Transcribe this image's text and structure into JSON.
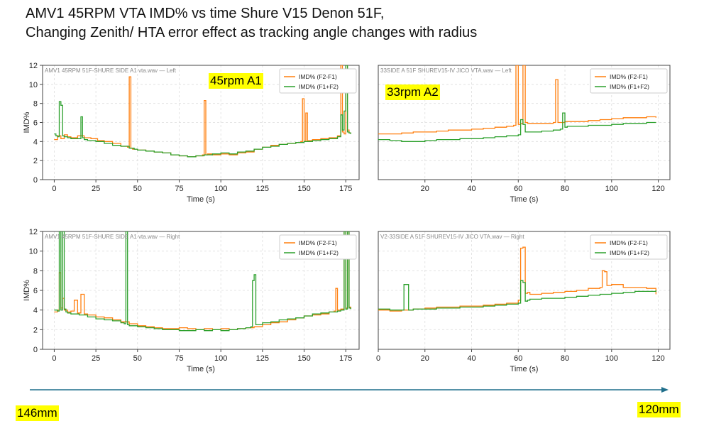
{
  "title_line1": "AMV1 45RPM   VTA IMD% vs time Shure V15 Denon 51F,",
  "title_line2": "Changing Zenith/ HTA error effect as  tracking angle changes with radius",
  "annotations": {
    "rpm45": "45rpm A1",
    "rpm33": "33rpm A2",
    "radius_start": "146mm",
    "radius_end": "120mm"
  },
  "colors": {
    "series1": "#ff7f0e",
    "series2": "#2ca02c",
    "highlight": "#ffff00",
    "arrow": "#1f6f8b"
  },
  "chart_data": [
    {
      "type": "line",
      "title": "AMV1 45RPM 51F-SHURE SIDE A1 vta.wav — Left",
      "xlabel": "Time (s)",
      "ylabel": "IMD%",
      "xlim": [
        -7,
        183
      ],
      "ylim": [
        0,
        12
      ],
      "xticks": [
        0,
        25,
        50,
        75,
        100,
        125,
        150,
        175
      ],
      "yticks": [
        0,
        2,
        4,
        6,
        8,
        10,
        12
      ],
      "grid": true,
      "legend": "top-right",
      "series": [
        {
          "name": "IMD% (F2-F1)",
          "x": [
            0,
            2,
            4,
            6,
            8,
            10,
            14,
            18,
            22,
            26,
            30,
            35,
            40,
            44,
            45,
            46,
            47,
            50,
            55,
            60,
            65,
            70,
            75,
            80,
            85,
            89,
            90,
            91,
            92,
            95,
            100,
            105,
            110,
            115,
            120,
            125,
            130,
            135,
            140,
            145,
            148,
            149,
            150,
            151,
            152,
            155,
            160,
            165,
            170,
            172,
            173,
            174,
            175,
            176,
            177,
            178
          ],
          "y": [
            4.2,
            4.6,
            4.3,
            4.7,
            4.5,
            4.4,
            4.6,
            4.4,
            4.3,
            4.1,
            4.0,
            3.8,
            3.5,
            3.4,
            10.8,
            3.3,
            3.2,
            3.1,
            3.0,
            2.9,
            2.8,
            2.6,
            2.5,
            2.4,
            2.5,
            2.6,
            8.3,
            2.6,
            2.7,
            2.6,
            2.7,
            2.6,
            2.8,
            2.9,
            3.2,
            3.4,
            3.6,
            3.7,
            3.8,
            3.9,
            4.0,
            8.5,
            4.0,
            7.0,
            4.1,
            4.2,
            4.3,
            4.4,
            4.6,
            12.0,
            5.0,
            4.8,
            12.0,
            5.2,
            4.9,
            4.8
          ]
        },
        {
          "name": "IMD% (F1+F2)",
          "x": [
            0,
            1,
            2,
            3,
            4,
            5,
            6,
            8,
            10,
            14,
            16,
            17,
            18,
            20,
            25,
            30,
            35,
            40,
            45,
            48,
            50,
            55,
            60,
            65,
            70,
            75,
            80,
            85,
            90,
            95,
            100,
            105,
            110,
            115,
            120,
            125,
            130,
            135,
            140,
            145,
            150,
            155,
            160,
            165,
            170,
            172,
            173,
            174,
            175,
            176,
            177,
            178
          ],
          "y": [
            4.8,
            4.6,
            4.5,
            8.2,
            7.8,
            4.6,
            4.5,
            4.4,
            4.3,
            4.3,
            6.6,
            4.4,
            4.2,
            4.1,
            4.0,
            3.8,
            3.6,
            3.5,
            3.3,
            3.2,
            3.1,
            3.0,
            2.9,
            2.8,
            2.6,
            2.5,
            2.4,
            2.5,
            2.6,
            2.7,
            2.8,
            2.7,
            2.9,
            3.0,
            3.2,
            3.4,
            3.5,
            3.7,
            3.8,
            3.9,
            4.0,
            4.1,
            4.2,
            4.3,
            4.5,
            6.8,
            5.2,
            7.2,
            12.0,
            5.0,
            4.9,
            4.8
          ]
        }
      ]
    },
    {
      "type": "line",
      "title": "33SIDE A 51F SHUREV15-IV JICO VTA.wav — Left",
      "xlabel": "Time (s)",
      "ylabel": "",
      "xlim": [
        0,
        125
      ],
      "ylim": [
        0,
        12
      ],
      "xticks": [
        20,
        40,
        60,
        80,
        100,
        120
      ],
      "yticks": [],
      "grid": true,
      "legend": "top-right",
      "series": [
        {
          "name": "IMD% (F2-F1)",
          "x": [
            0,
            5,
            10,
            15,
            20,
            25,
            30,
            35,
            40,
            45,
            50,
            55,
            58,
            59,
            60,
            61,
            62,
            63,
            64,
            65,
            70,
            75,
            76,
            77,
            78,
            80,
            85,
            90,
            95,
            100,
            105,
            110,
            115,
            119
          ],
          "y": [
            4.8,
            4.8,
            4.9,
            5.0,
            5.0,
            5.1,
            5.2,
            5.2,
            5.3,
            5.4,
            5.5,
            5.6,
            5.7,
            12.0,
            5.8,
            5.9,
            12.0,
            6.0,
            5.9,
            5.9,
            5.9,
            6.0,
            10.5,
            6.0,
            6.0,
            6.1,
            6.1,
            6.2,
            6.3,
            6.4,
            6.5,
            6.5,
            6.6,
            6.5
          ]
        },
        {
          "name": "IMD% (F1+F2)",
          "x": [
            0,
            5,
            10,
            15,
            20,
            25,
            30,
            35,
            40,
            45,
            50,
            55,
            60,
            61,
            62,
            63,
            65,
            70,
            75,
            78,
            79,
            80,
            81,
            85,
            90,
            95,
            100,
            105,
            110,
            115,
            119
          ],
          "y": [
            4.2,
            4.1,
            4.0,
            4.0,
            4.1,
            4.2,
            4.2,
            4.3,
            4.3,
            4.4,
            4.5,
            4.6,
            4.7,
            6.3,
            5.8,
            5.0,
            5.0,
            5.1,
            5.2,
            5.3,
            7.0,
            5.5,
            5.6,
            5.6,
            5.7,
            5.7,
            5.8,
            5.9,
            5.9,
            6.0,
            6.0
          ]
        }
      ]
    },
    {
      "type": "line",
      "title": "AMV1 45RPM 51F-SHURE SIDE A1 vta.wav — Right",
      "xlabel": "Time (s)",
      "ylabel": "IMD%",
      "xlim": [
        -7,
        183
      ],
      "ylim": [
        0,
        12
      ],
      "xticks": [
        0,
        25,
        50,
        75,
        100,
        125,
        150,
        175
      ],
      "yticks": [
        0,
        2,
        4,
        6,
        8,
        10,
        12
      ],
      "grid": true,
      "legend": "top-right",
      "series": [
        {
          "name": "IMD% (F2-F1)",
          "x": [
            0,
            2,
            3,
            4,
            5,
            6,
            8,
            10,
            12,
            14,
            16,
            18,
            20,
            25,
            30,
            35,
            40,
            45,
            50,
            55,
            60,
            65,
            70,
            75,
            80,
            85,
            90,
            95,
            100,
            105,
            110,
            115,
            120,
            125,
            130,
            135,
            140,
            145,
            150,
            155,
            160,
            165,
            168,
            169,
            170,
            172,
            174,
            175,
            176,
            177,
            178
          ],
          "y": [
            3.8,
            4.0,
            7.8,
            4.2,
            5.2,
            4.0,
            3.8,
            3.9,
            5.0,
            3.7,
            5.6,
            3.6,
            3.5,
            3.3,
            3.2,
            3.0,
            2.8,
            2.6,
            2.4,
            2.3,
            2.2,
            2.1,
            2.1,
            2.2,
            2.1,
            2.0,
            2.1,
            2.0,
            2.1,
            2.0,
            2.1,
            2.2,
            2.3,
            2.5,
            2.7,
            2.8,
            3.0,
            3.2,
            3.4,
            3.5,
            3.6,
            3.8,
            3.9,
            6.2,
            4.0,
            4.1,
            12.0,
            4.2,
            12.0,
            4.3,
            4.1
          ]
        },
        {
          "name": "IMD% (F1+F2)",
          "x": [
            0,
            2,
            3,
            4,
            5,
            6,
            7,
            8,
            10,
            15,
            20,
            25,
            30,
            35,
            40,
            42,
            43,
            44,
            45,
            50,
            55,
            60,
            65,
            70,
            75,
            80,
            85,
            90,
            95,
            100,
            105,
            110,
            115,
            118,
            119,
            120,
            121,
            125,
            130,
            135,
            140,
            145,
            150,
            155,
            160,
            165,
            170,
            172,
            174,
            175,
            176,
            177,
            178
          ],
          "y": [
            4.0,
            3.9,
            12.0,
            4.0,
            12.0,
            4.1,
            3.8,
            3.7,
            3.6,
            3.5,
            3.3,
            3.1,
            3.0,
            2.9,
            2.7,
            2.6,
            12.0,
            2.5,
            2.4,
            2.3,
            2.2,
            2.1,
            2.0,
            2.0,
            1.9,
            1.9,
            2.0,
            1.9,
            2.0,
            1.9,
            2.0,
            2.1,
            2.2,
            2.3,
            7.0,
            7.6,
            2.5,
            2.7,
            2.8,
            3.0,
            3.1,
            3.2,
            3.4,
            3.6,
            3.7,
            3.8,
            3.9,
            4.0,
            12.0,
            4.1,
            12.0,
            4.2,
            4.1
          ]
        }
      ]
    },
    {
      "type": "line",
      "title": "V2-33SIDE A 51F SHUREV15-IV JICO VTA.wav — Right",
      "xlabel": "Time (s)",
      "ylabel": "",
      "xlim": [
        0,
        125
      ],
      "ylim": [
        0,
        12
      ],
      "xticks": [
        0,
        20,
        40,
        60,
        80,
        100,
        120
      ],
      "yticks": [],
      "grid": true,
      "legend": "top-right",
      "series": [
        {
          "name": "IMD% (F2-F1)",
          "x": [
            0,
            5,
            10,
            15,
            20,
            25,
            30,
            35,
            40,
            45,
            50,
            55,
            60,
            61,
            62,
            63,
            64,
            65,
            70,
            75,
            80,
            85,
            90,
            95,
            96,
            97,
            98,
            99,
            100,
            105,
            110,
            115,
            119
          ],
          "y": [
            4.0,
            3.9,
            4.0,
            4.1,
            4.2,
            4.3,
            4.3,
            4.4,
            4.4,
            4.5,
            4.6,
            4.7,
            5.0,
            10.3,
            10.4,
            5.7,
            5.8,
            5.6,
            5.7,
            5.8,
            5.9,
            6.0,
            6.2,
            6.3,
            8.0,
            7.9,
            6.5,
            6.5,
            6.6,
            6.3,
            6.3,
            6.2,
            5.6
          ]
        },
        {
          "name": "IMD% (F1+F2)",
          "x": [
            0,
            5,
            10,
            11,
            12,
            13,
            15,
            20,
            25,
            30,
            35,
            40,
            45,
            50,
            55,
            60,
            61,
            62,
            63,
            64,
            65,
            70,
            75,
            80,
            85,
            90,
            95,
            100,
            105,
            110,
            115,
            119
          ],
          "y": [
            4.1,
            4.0,
            4.0,
            6.6,
            6.6,
            4.0,
            4.1,
            4.1,
            4.2,
            4.2,
            4.3,
            4.3,
            4.4,
            4.5,
            4.6,
            4.7,
            7.0,
            6.8,
            4.9,
            5.0,
            5.1,
            5.2,
            5.2,
            5.3,
            5.4,
            5.5,
            5.6,
            5.7,
            5.8,
            5.9,
            5.9,
            6.0
          ]
        }
      ]
    }
  ]
}
